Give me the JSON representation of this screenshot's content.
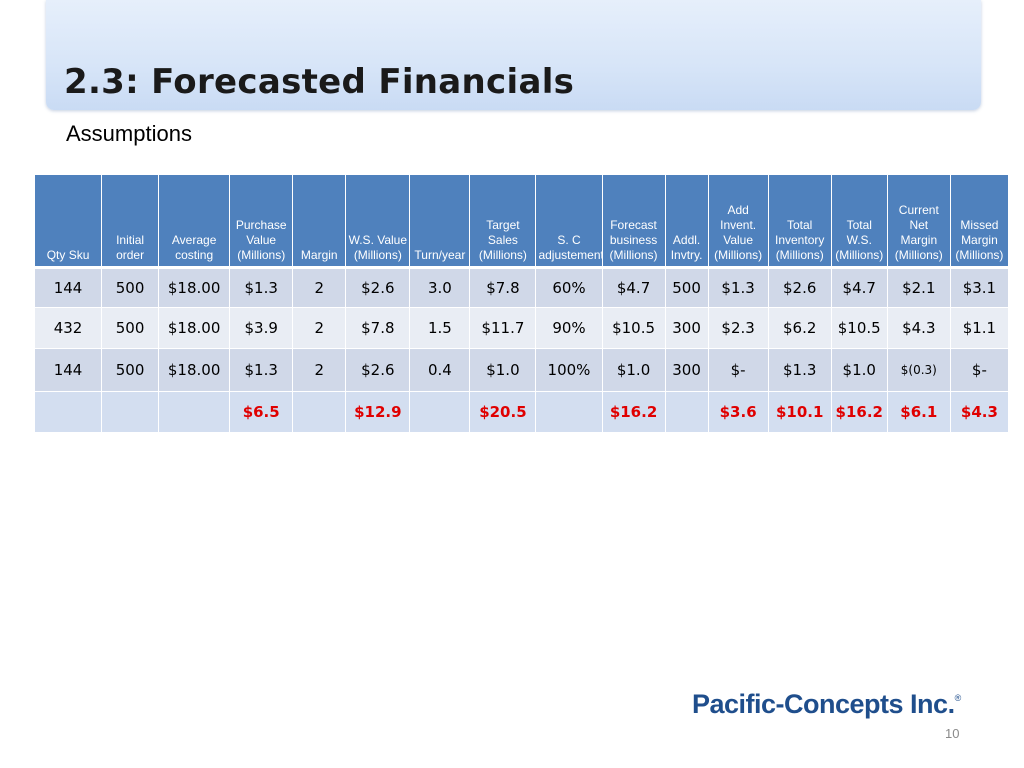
{
  "slide": {
    "title": "2.3: Forecasted Financials",
    "subtitle": "Assumptions",
    "logo_text": "Pacific-Concepts Inc.",
    "logo_mark": "®",
    "page_number": "10"
  },
  "table": {
    "headers": [
      "Qty Sku",
      "Initial order",
      "Average costing",
      "Purchase Value (Millions)",
      "Margin",
      "W.S. Value (Millions)",
      "Turn/year",
      "Target Sales (Millions)",
      "S. C adjustement",
      "Forecast business (Millions)",
      "Addl. Invtry.",
      "Add Invent. Value (Millions)",
      "Total Inventory (Millions)",
      "Total W.S. (Millions)",
      "Current Net Margin (Millions)",
      "Missed Margin (Millions)"
    ],
    "rows": [
      [
        "144",
        "500",
        "$18.00",
        "$1.3",
        "2",
        "$2.6",
        "3.0",
        "$7.8",
        "60%",
        "$4.7",
        "500",
        "$1.3",
        "$2.6",
        "$4.7",
        "$2.1",
        "$3.1"
      ],
      [
        "432",
        "500",
        "$18.00",
        "$3.9",
        "2",
        "$7.8",
        "1.5",
        "$11.7",
        "90%",
        "$10.5",
        "300",
        "$2.3",
        "$6.2",
        "$10.5",
        "$4.3",
        "$1.1"
      ],
      [
        "144",
        "500",
        "$18.00",
        "$1.3",
        "2",
        "$2.6",
        "0.4",
        "$1.0",
        "100%",
        "$1.0",
        "300",
        "$-",
        "$1.3",
        "$1.0",
        "$(0.3)",
        "$-"
      ]
    ],
    "totals": [
      "",
      "",
      "",
      "$6.5",
      "",
      "$12.9",
      "",
      "$20.5",
      "",
      "$16.2",
      "",
      "$3.6",
      "$10.1",
      "$16.2",
      "$6.1",
      "$4.3"
    ]
  },
  "colors": {
    "header_bg": "#4f81bd",
    "row_dark": "#d0d8e8",
    "row_light": "#e9edf4",
    "total_text": "#e00000",
    "logo": "#1f4e8c"
  }
}
